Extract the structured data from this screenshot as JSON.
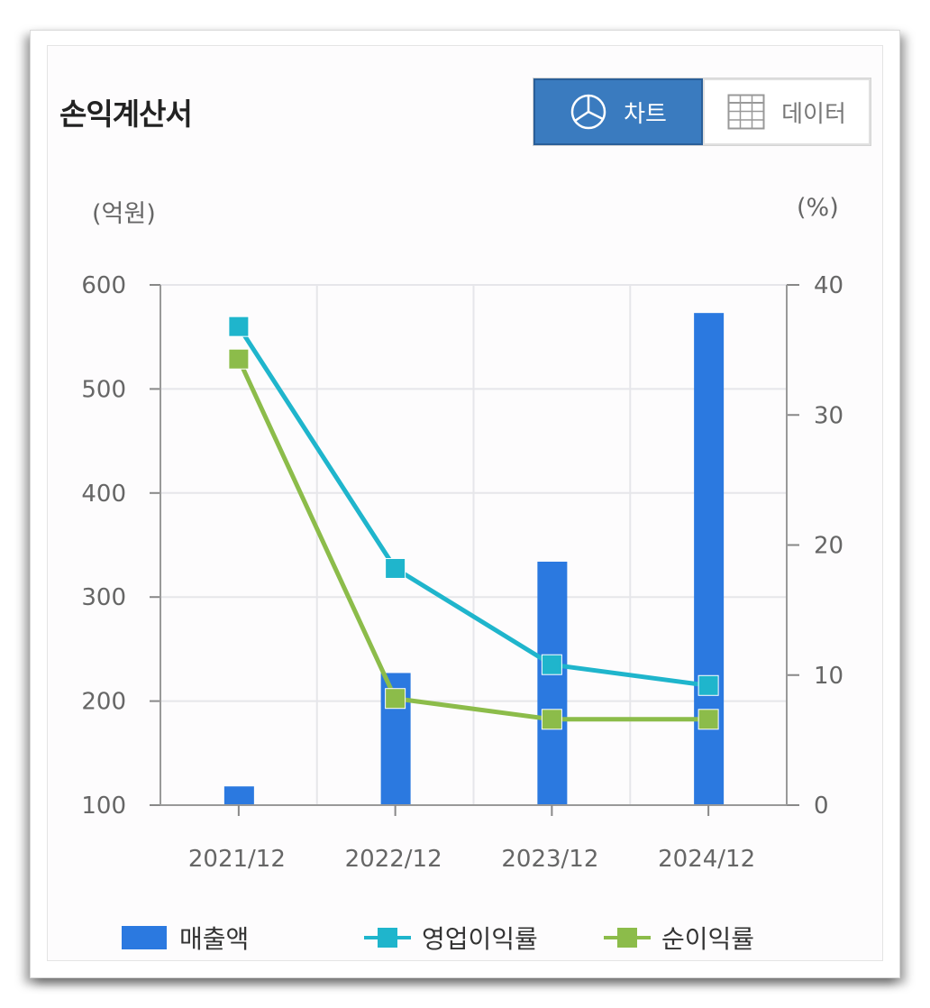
{
  "header": {
    "title": "손익계산서",
    "toggle": {
      "chart_label": "차트",
      "data_label": "데이터",
      "active": "chart"
    }
  },
  "colors": {
    "sales": "#2b79e0",
    "operating": "#1fb5cc",
    "net": "#8cbc4a"
  },
  "icons": {
    "chart_button": "pie-chart-icon",
    "data_button": "table-grid-icon"
  },
  "chart_data": {
    "type": "bar",
    "categories": [
      "2021/12",
      "2022/12",
      "2023/12",
      "2024/12"
    ],
    "left_unit": "(억원)",
    "right_unit": "(%)",
    "y_left": {
      "min": 100,
      "max": 600,
      "ticks": [
        "100",
        "200",
        "300",
        "400",
        "500",
        "600"
      ]
    },
    "y_right": {
      "min": 0,
      "max": 40,
      "ticks": [
        "0",
        "10",
        "20",
        "30",
        "40"
      ]
    },
    "grid": true,
    "legend_position": "bottom",
    "series": [
      {
        "name": "매출액",
        "type": "bar",
        "axis": "left",
        "values": [
          118,
          227,
          334,
          573
        ]
      },
      {
        "name": "영업이익률",
        "type": "line",
        "axis": "right",
        "values": [
          36.8,
          18.2,
          10.8,
          9.2
        ]
      },
      {
        "name": "순이익률",
        "type": "line",
        "axis": "right",
        "values": [
          34.3,
          8.2,
          6.6,
          6.6
        ]
      }
    ]
  }
}
